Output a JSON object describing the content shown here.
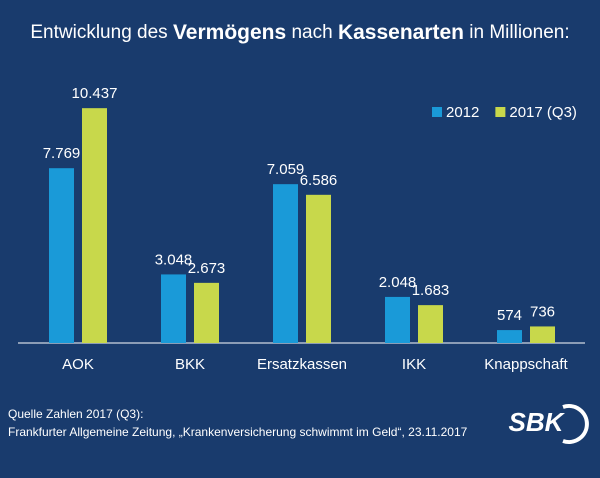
{
  "chart_data": {
    "type": "bar",
    "title_parts": [
      "Entwicklung des",
      "Vermögens",
      "nach",
      "Kassenarten",
      "in Millionen:"
    ],
    "categories": [
      "AOK",
      "BKK",
      "Ersatzkassen",
      "IKK",
      "Knappschaft"
    ],
    "series": [
      {
        "name": "2012",
        "color": "#1a9ad8",
        "values": [
          7769,
          3048,
          7059,
          2048,
          574
        ],
        "value_labels": [
          "7.769",
          "3.048",
          "7.059",
          "2.048",
          "574"
        ]
      },
      {
        "name": "2017 (Q3)",
        "color": "#c8d84b",
        "values": [
          10437,
          2673,
          6586,
          1683,
          736
        ],
        "value_labels": [
          "10.437",
          "2.673",
          "6.586",
          "1.683",
          "736"
        ]
      }
    ],
    "ylim": [
      0,
      12000
    ],
    "grid": false,
    "legend": "top-right",
    "source": [
      "Quelle Zahlen 2017 (Q3):",
      "Frankfurter Allgemeine Zeitung, „Krankenversicherung schwimmt im Geld“, 23.11.2017"
    ],
    "logo": "SBK"
  }
}
